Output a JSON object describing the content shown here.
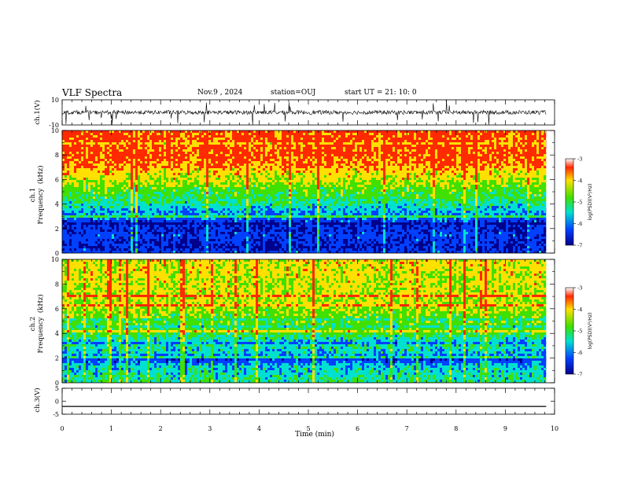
{
  "header": {
    "title": "VLF Spectra",
    "date": "Nov.9  , 2024",
    "station": "station=OUJ",
    "start": "start  UT  =   21: 10: 0"
  },
  "colors": {
    "red": "#ff2a00",
    "yellow": "#ffe000",
    "green": "#40e000",
    "cyan": "#00e0d0",
    "blue": "#0040ff",
    "navy": "#00008c"
  },
  "chart_data": [
    {
      "type": "line",
      "panel": "ch1-waveform",
      "ylabel": "ch.1(V)",
      "ylim": [
        -10,
        10
      ],
      "yticklabels": [
        "10",
        "-10"
      ],
      "xlim": [
        0,
        10
      ],
      "baseline": 0
    },
    {
      "type": "heatmap",
      "panel": "ch1-spectrogram",
      "ylabel": "ch.1\nFrequency  (kHz)",
      "ylim": [
        0,
        10
      ],
      "yticks": [
        0,
        2,
        4,
        6,
        8,
        10
      ],
      "xlim": [
        0,
        10
      ],
      "profile_freq_khz": [
        0,
        0.5,
        1,
        1.5,
        2,
        2.5,
        3,
        3.5,
        4,
        4.5,
        5,
        5.5,
        6,
        6.5,
        7,
        7.5,
        8,
        8.5,
        9,
        9.5,
        10
      ],
      "profile_log_psd": [
        -6.2,
        -6.6,
        -6.4,
        -6.3,
        -6.5,
        -6.4,
        -5.8,
        -5.7,
        -5.3,
        -5.0,
        -4.9,
        -4.6,
        -4.3,
        -4.1,
        -3.8,
        -3.6,
        -3.5,
        -3.5,
        -3.5,
        -3.5,
        -3.5
      ],
      "colorbar": {
        "min": -7,
        "max": -3,
        "ticks": [
          "-3",
          "-4",
          "-5",
          "-6",
          "-7"
        ],
        "label": "log(PSD)(V²/Hz)"
      }
    },
    {
      "type": "heatmap",
      "panel": "ch2-spectrogram",
      "ylabel": "ch.2\nFrequency  (kHz)",
      "ylim": [
        0,
        10
      ],
      "yticks": [
        0,
        2,
        4,
        6,
        8,
        10
      ],
      "xlim": [
        0,
        10
      ],
      "profile_freq_khz": [
        0,
        0.5,
        1,
        1.5,
        2,
        2.5,
        3,
        3.5,
        4,
        4.5,
        5,
        5.5,
        6,
        6.5,
        7,
        7.5,
        8,
        8.5,
        9,
        9.5,
        10
      ],
      "profile_log_psd": [
        -5.2,
        -5.3,
        -5.5,
        -5.6,
        -6.3,
        -5.6,
        -5.4,
        -5.5,
        -5.0,
        -4.9,
        -4.8,
        -4.7,
        -4.5,
        -4.4,
        -4.3,
        -4.3,
        -4.3,
        -4.3,
        -4.2,
        -4.2,
        -4.2
      ],
      "colorbar": {
        "min": -7,
        "max": -3,
        "ticks": [
          "-3",
          "-4",
          "-5",
          "-6",
          "-7"
        ],
        "label": "log(PSD)(V²/Hz)"
      }
    },
    {
      "type": "line",
      "panel": "ch3-waveform",
      "ylabel": "ch.3(V)",
      "ylim": [
        -5,
        5
      ],
      "yticklabels": [
        "5",
        "0",
        "-5"
      ],
      "xlim": [
        0,
        10
      ],
      "value": -2
    }
  ],
  "xaxis": {
    "label": "Time  (min)",
    "ticks": [
      "0",
      "1",
      "2",
      "3",
      "4",
      "5",
      "6",
      "7",
      "8",
      "9",
      "10"
    ],
    "data_end": 9.83
  }
}
